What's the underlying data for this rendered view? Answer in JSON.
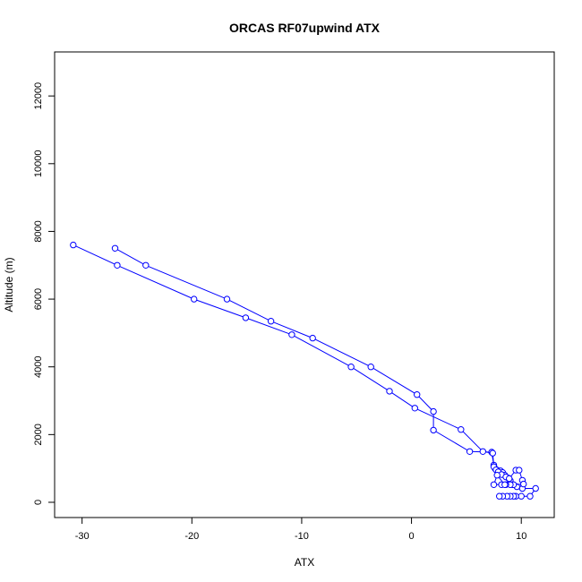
{
  "chart_data": {
    "type": "line",
    "title": "ORCAS RF07upwind ATX",
    "xlabel": "ATX",
    "ylabel": "Altitude (m)",
    "xlim": [
      -32.5,
      13
    ],
    "ylim": [
      -450,
      13300
    ],
    "xticks": [
      -30,
      -20,
      -10,
      0,
      10
    ],
    "yticks": [
      0,
      2000,
      4000,
      6000,
      8000,
      10000,
      12000
    ],
    "grid": false,
    "color": "#0000ff",
    "marker": "open-circle",
    "series": [
      {
        "points": [
          [
            -27.0,
            7500
          ],
          [
            -24.2,
            7000
          ],
          [
            -16.8,
            6000
          ],
          [
            -12.8,
            5350
          ],
          [
            -9.0,
            4850
          ],
          [
            -3.7,
            4000
          ],
          [
            0.5,
            3180
          ],
          [
            2.0,
            2680
          ],
          [
            2.0,
            2130
          ],
          [
            5.3,
            1500
          ],
          [
            7.3,
            1480
          ],
          [
            7.5,
            1100
          ],
          [
            7.6,
            1000
          ],
          [
            7.8,
            950
          ],
          [
            8.1,
            930
          ],
          [
            8.3,
            880
          ],
          [
            8.5,
            800
          ],
          [
            8.8,
            720
          ],
          [
            9.0,
            640
          ],
          [
            9.2,
            520
          ],
          [
            9.6,
            460
          ],
          [
            10.1,
            410
          ],
          [
            11.3,
            410
          ],
          [
            10.8,
            180
          ],
          [
            10.0,
            180
          ],
          [
            9.5,
            180
          ],
          [
            9.3,
            180
          ],
          [
            9.0,
            180
          ],
          [
            8.7,
            180
          ],
          [
            8.3,
            180
          ],
          [
            8.0,
            180
          ]
        ]
      },
      {
        "points": [
          [
            -30.8,
            7600
          ],
          [
            -26.8,
            7000
          ],
          [
            -19.8,
            6000
          ],
          [
            -15.1,
            5450
          ],
          [
            -10.9,
            4950
          ],
          [
            -5.5,
            4000
          ],
          [
            -2.0,
            3280
          ],
          [
            0.3,
            2780
          ],
          [
            4.5,
            2150
          ],
          [
            6.5,
            1500
          ],
          [
            7.4,
            1450
          ],
          [
            7.5,
            1050
          ],
          [
            7.7,
            960
          ],
          [
            7.9,
            900
          ],
          [
            8.2,
            820
          ],
          [
            8.6,
            750
          ],
          [
            8.9,
            700
          ],
          [
            9.5,
            950
          ],
          [
            9.8,
            950
          ],
          [
            10.1,
            650
          ],
          [
            10.2,
            540
          ],
          [
            9.3,
            520
          ],
          [
            9.0,
            520
          ],
          [
            8.6,
            520
          ],
          [
            8.2,
            520
          ],
          [
            7.5,
            520
          ],
          [
            7.8,
            800
          ],
          [
            8.5,
            520
          ]
        ]
      }
    ]
  }
}
